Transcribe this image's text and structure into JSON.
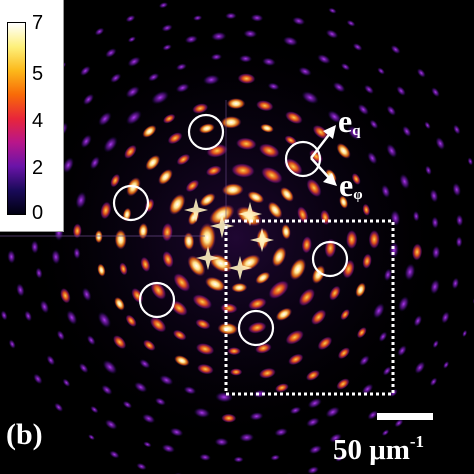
{
  "panel_label": "(b)",
  "colorbar": {
    "ticks": [
      "7",
      "5",
      "4",
      "2",
      "0"
    ],
    "colors": [
      "#000010",
      "#1a0a5a",
      "#6a14a8",
      "#b8168a",
      "#e8263a",
      "#f86a08",
      "#fcb81a",
      "#fdf07a",
      "#ffffff"
    ]
  },
  "scale_bar": {
    "value": "50",
    "unit": "μm",
    "exponent": "-1"
  },
  "vectors": {
    "q_label_main": "e",
    "q_label_sub": "q",
    "phi_label_main": "e",
    "phi_label_sub": "φ"
  }
}
